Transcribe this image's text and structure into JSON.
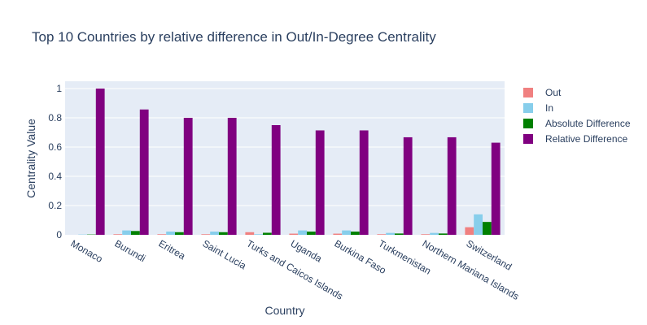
{
  "chart_data": {
    "type": "bar",
    "title": "Top 10 Countries by relative difference in Out/In-Degree Centrality",
    "xlabel": "Country",
    "ylabel": "Centrality Value",
    "ylim": [
      0,
      1.05
    ],
    "yticks": [
      "0",
      "0.2",
      "0.4",
      "0.6",
      "0.8",
      "1"
    ],
    "ytick_values": [
      0,
      0.2,
      0.4,
      0.6,
      0.8,
      1.0
    ],
    "grid": true,
    "legend_position": "right",
    "categories": [
      "Monaco",
      "Burundi",
      "Eritrea",
      "Saint Lucia",
      "Turks and Caicos Islands",
      "Uganda",
      "Burkina Faso",
      "Turkmenistan",
      "Northern Mariana Islands",
      "Switzerland"
    ],
    "series": [
      {
        "name": "Out",
        "color": "#f08080",
        "values": [
          0.0,
          0.004,
          0.004,
          0.004,
          0.018,
          0.008,
          0.008,
          0.004,
          0.004,
          0.052
        ]
      },
      {
        "name": "In",
        "color": "#87ceeb",
        "values": [
          0.002,
          0.03,
          0.022,
          0.022,
          0.004,
          0.03,
          0.03,
          0.013,
          0.013,
          0.14
        ]
      },
      {
        "name": "Absolute Difference",
        "color": "#008000",
        "values": [
          0.002,
          0.026,
          0.018,
          0.018,
          0.014,
          0.022,
          0.022,
          0.009,
          0.009,
          0.088
        ]
      },
      {
        "name": "Relative Difference",
        "color": "#800080",
        "values": [
          1.0,
          0.857,
          0.8,
          0.8,
          0.75,
          0.714,
          0.714,
          0.667,
          0.667,
          0.63
        ]
      }
    ]
  }
}
